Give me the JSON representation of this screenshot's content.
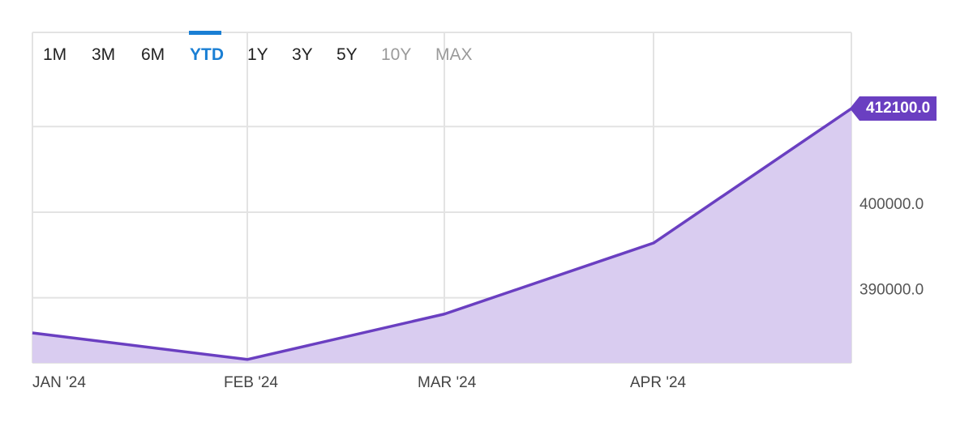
{
  "range_selector": {
    "tabs": [
      {
        "label": "1M",
        "state": "enabled"
      },
      {
        "label": "3M",
        "state": "enabled"
      },
      {
        "label": "6M",
        "state": "enabled"
      },
      {
        "label": "YTD",
        "state": "active"
      },
      {
        "label": "1Y",
        "state": "enabled"
      },
      {
        "label": "3Y",
        "state": "enabled"
      },
      {
        "label": "5Y",
        "state": "enabled"
      },
      {
        "label": "10Y",
        "state": "disabled"
      },
      {
        "label": "MAX",
        "state": "disabled"
      }
    ]
  },
  "colors": {
    "series_line": "#6a3fc1",
    "series_fill": "#d9ccf0",
    "active_tab": "#1a7fd4",
    "grid": "#e3e3e3"
  },
  "chart_data": {
    "type": "area",
    "x": [
      "Jan 1 '24",
      "Feb 1 '24",
      "Mar 1 '24",
      "Apr 1 '24",
      "May 1 '24"
    ],
    "series": [
      {
        "values": [
          385900,
          382800,
          388100,
          396400,
          412100
        ]
      }
    ],
    "x_ticks": [
      "JAN '24",
      "FEB '24",
      "MAR '24",
      "APR '24"
    ],
    "y_ticks": [
      "390000.0",
      "400000.0"
    ],
    "ylim": [
      382400,
      421000
    ],
    "last_value_label": "412100.0",
    "y_axis_side": "right",
    "grid": true,
    "legend": "none"
  }
}
